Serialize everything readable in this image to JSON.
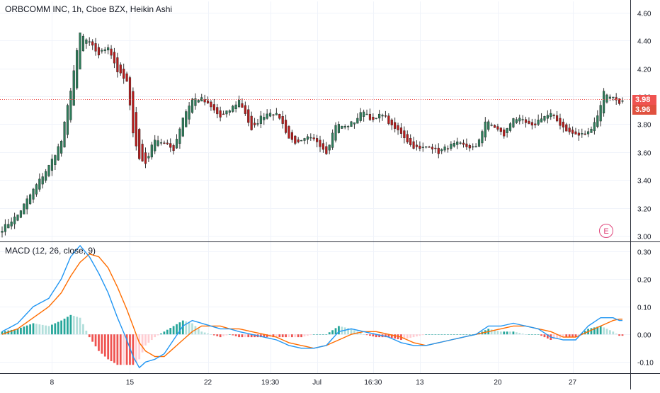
{
  "header": {
    "symbol_info": "ORBCOMM INC, 1h, Cboe BZX, Heikin Ashi",
    "indicator_label": "MACD (12, 26, close, 9)"
  },
  "price_tags": [
    {
      "label": "3.98",
      "color": "#ef5350"
    },
    {
      "label": "3.96",
      "color": "#e0513f"
    }
  ],
  "event_badge": "E",
  "colors": {
    "up": "#26a69a",
    "down": "#ef5350",
    "candle_up": "#2e7d5b",
    "candle_down": "#b71c1c",
    "macd_line": "#2196f3",
    "signal_line": "#ff6d00",
    "grid": "#f0f3fa",
    "axis_text": "#131722",
    "hist_up_strong": "#26a69a",
    "hist_up_weak": "#b2dfdb",
    "hist_down_strong": "#ef5350",
    "hist_down_weak": "#ffcdd2"
  },
  "chart_data": [
    {
      "type": "candlestick",
      "style": "Heikin Ashi",
      "title": "ORBCOMM INC, 1h, Cboe BZX, Heikin Ashi",
      "y_axis_ticks": [
        "4.60",
        "4.40",
        "4.20",
        "4.00",
        "3.80",
        "3.60",
        "3.40",
        "3.20",
        "3.00"
      ],
      "ylim": [
        2.96,
        4.68
      ],
      "last_price_line": 3.98,
      "x_tick_labels": [
        "8",
        "15",
        "22",
        "19:30",
        "Jul",
        "16:30",
        "13",
        "20",
        "27"
      ],
      "close_anchors": [
        [
          0,
          3.05
        ],
        [
          5,
          3.15
        ],
        [
          10,
          3.33
        ],
        [
          15,
          3.5
        ],
        [
          19,
          3.68
        ],
        [
          22,
          4.05
        ],
        [
          25,
          4.45
        ],
        [
          28,
          4.38
        ],
        [
          31,
          4.3
        ],
        [
          34,
          4.36
        ],
        [
          37,
          4.18
        ],
        [
          40,
          4.1
        ],
        [
          42,
          3.75
        ],
        [
          44,
          3.55
        ],
        [
          46,
          3.52
        ],
        [
          49,
          3.7
        ],
        [
          52,
          3.66
        ],
        [
          55,
          3.62
        ],
        [
          58,
          3.85
        ],
        [
          61,
          3.98
        ],
        [
          64,
          3.98
        ],
        [
          67,
          3.92
        ],
        [
          70,
          3.85
        ],
        [
          73,
          3.9
        ],
        [
          76,
          3.97
        ],
        [
          78,
          3.88
        ],
        [
          80,
          3.75
        ],
        [
          83,
          3.85
        ],
        [
          86,
          3.89
        ],
        [
          89,
          3.85
        ],
        [
          92,
          3.7
        ],
        [
          95,
          3.66
        ],
        [
          98,
          3.7
        ],
        [
          101,
          3.68
        ],
        [
          104,
          3.6
        ],
        [
          107,
          3.8
        ],
        [
          110,
          3.78
        ],
        [
          113,
          3.82
        ],
        [
          116,
          3.9
        ],
        [
          119,
          3.82
        ],
        [
          122,
          3.88
        ],
        [
          125,
          3.78
        ],
        [
          128,
          3.74
        ],
        [
          131,
          3.65
        ],
        [
          134,
          3.62
        ],
        [
          137,
          3.65
        ],
        [
          140,
          3.6
        ],
        [
          143,
          3.64
        ],
        [
          146,
          3.66
        ],
        [
          149,
          3.64
        ],
        [
          152,
          3.63
        ],
        [
          155,
          3.82
        ],
        [
          158,
          3.78
        ],
        [
          161,
          3.72
        ],
        [
          164,
          3.85
        ],
        [
          167,
          3.82
        ],
        [
          170,
          3.78
        ],
        [
          173,
          3.85
        ],
        [
          176,
          3.87
        ],
        [
          179,
          3.8
        ],
        [
          182,
          3.74
        ],
        [
          185,
          3.72
        ],
        [
          188,
          3.74
        ],
        [
          191,
          3.86
        ],
        [
          193,
          4.03
        ],
        [
          196,
          3.99
        ],
        [
          198,
          3.96
        ]
      ]
    },
    {
      "type": "line+histogram",
      "title": "MACD (12, 26, close, 9)",
      "y_axis_ticks": [
        "0.30",
        "0.20",
        "0.10",
        "0.00",
        "-0.10"
      ],
      "ylim": [
        -0.14,
        0.33
      ],
      "series": [
        {
          "name": "MACD",
          "anchors": [
            [
              0,
              0.01
            ],
            [
              5,
              0.04
            ],
            [
              10,
              0.1
            ],
            [
              15,
              0.13
            ],
            [
              19,
              0.2
            ],
            [
              22,
              0.28
            ],
            [
              25,
              0.32
            ],
            [
              28,
              0.28
            ],
            [
              31,
              0.22
            ],
            [
              34,
              0.15
            ],
            [
              37,
              0.06
            ],
            [
              40,
              -0.02
            ],
            [
              42,
              -0.08
            ],
            [
              44,
              -0.12
            ],
            [
              46,
              -0.1
            ],
            [
              49,
              -0.09
            ],
            [
              52,
              -0.07
            ],
            [
              55,
              -0.02
            ],
            [
              58,
              0.03
            ],
            [
              61,
              0.05
            ],
            [
              64,
              0.04
            ],
            [
              67,
              0.03
            ],
            [
              70,
              0.02
            ],
            [
              73,
              0.02
            ],
            [
              76,
              0.01
            ],
            [
              80,
              0.0
            ],
            [
              84,
              -0.01
            ],
            [
              88,
              -0.02
            ],
            [
              92,
              -0.04
            ],
            [
              96,
              -0.05
            ],
            [
              100,
              -0.05
            ],
            [
              104,
              -0.04
            ],
            [
              108,
              0.01
            ],
            [
              112,
              0.02
            ],
            [
              116,
              0.01
            ],
            [
              120,
              0.0
            ],
            [
              124,
              -0.01
            ],
            [
              128,
              -0.03
            ],
            [
              132,
              -0.04
            ],
            [
              136,
              -0.04
            ],
            [
              140,
              -0.03
            ],
            [
              144,
              -0.02
            ],
            [
              148,
              -0.01
            ],
            [
              152,
              0.0
            ],
            [
              156,
              0.03
            ],
            [
              160,
              0.03
            ],
            [
              164,
              0.04
            ],
            [
              168,
              0.03
            ],
            [
              172,
              0.02
            ],
            [
              176,
              -0.01
            ],
            [
              180,
              -0.02
            ],
            [
              184,
              -0.02
            ],
            [
              188,
              0.03
            ],
            [
              192,
              0.06
            ],
            [
              196,
              0.06
            ],
            [
              198,
              0.05
            ]
          ]
        },
        {
          "name": "Signal",
          "anchors": [
            [
              0,
              0.0
            ],
            [
              5,
              0.02
            ],
            [
              10,
              0.06
            ],
            [
              15,
              0.1
            ],
            [
              19,
              0.15
            ],
            [
              22,
              0.21
            ],
            [
              25,
              0.26
            ],
            [
              28,
              0.29
            ],
            [
              31,
              0.28
            ],
            [
              34,
              0.24
            ],
            [
              37,
              0.17
            ],
            [
              40,
              0.09
            ],
            [
              42,
              0.03
            ],
            [
              44,
              -0.03
            ],
            [
              46,
              -0.06
            ],
            [
              49,
              -0.08
            ],
            [
              52,
              -0.08
            ],
            [
              55,
              -0.05
            ],
            [
              58,
              -0.02
            ],
            [
              61,
              0.01
            ],
            [
              64,
              0.03
            ],
            [
              67,
              0.03
            ],
            [
              70,
              0.03
            ],
            [
              73,
              0.02
            ],
            [
              76,
              0.02
            ],
            [
              80,
              0.01
            ],
            [
              84,
              0.0
            ],
            [
              88,
              -0.01
            ],
            [
              92,
              -0.03
            ],
            [
              96,
              -0.04
            ],
            [
              100,
              -0.05
            ],
            [
              104,
              -0.04
            ],
            [
              108,
              -0.02
            ],
            [
              112,
              0.0
            ],
            [
              116,
              0.01
            ],
            [
              120,
              0.01
            ],
            [
              124,
              0.0
            ],
            [
              128,
              -0.01
            ],
            [
              132,
              -0.03
            ],
            [
              136,
              -0.04
            ],
            [
              140,
              -0.03
            ],
            [
              144,
              -0.02
            ],
            [
              148,
              -0.01
            ],
            [
              152,
              0.0
            ],
            [
              156,
              0.01
            ],
            [
              160,
              0.02
            ],
            [
              164,
              0.03
            ],
            [
              168,
              0.03
            ],
            [
              172,
              0.02
            ],
            [
              176,
              0.01
            ],
            [
              180,
              -0.01
            ],
            [
              184,
              -0.01
            ],
            [
              188,
              0.01
            ],
            [
              192,
              0.03
            ],
            [
              196,
              0.05
            ],
            [
              198,
              0.055
            ]
          ]
        }
      ]
    }
  ]
}
